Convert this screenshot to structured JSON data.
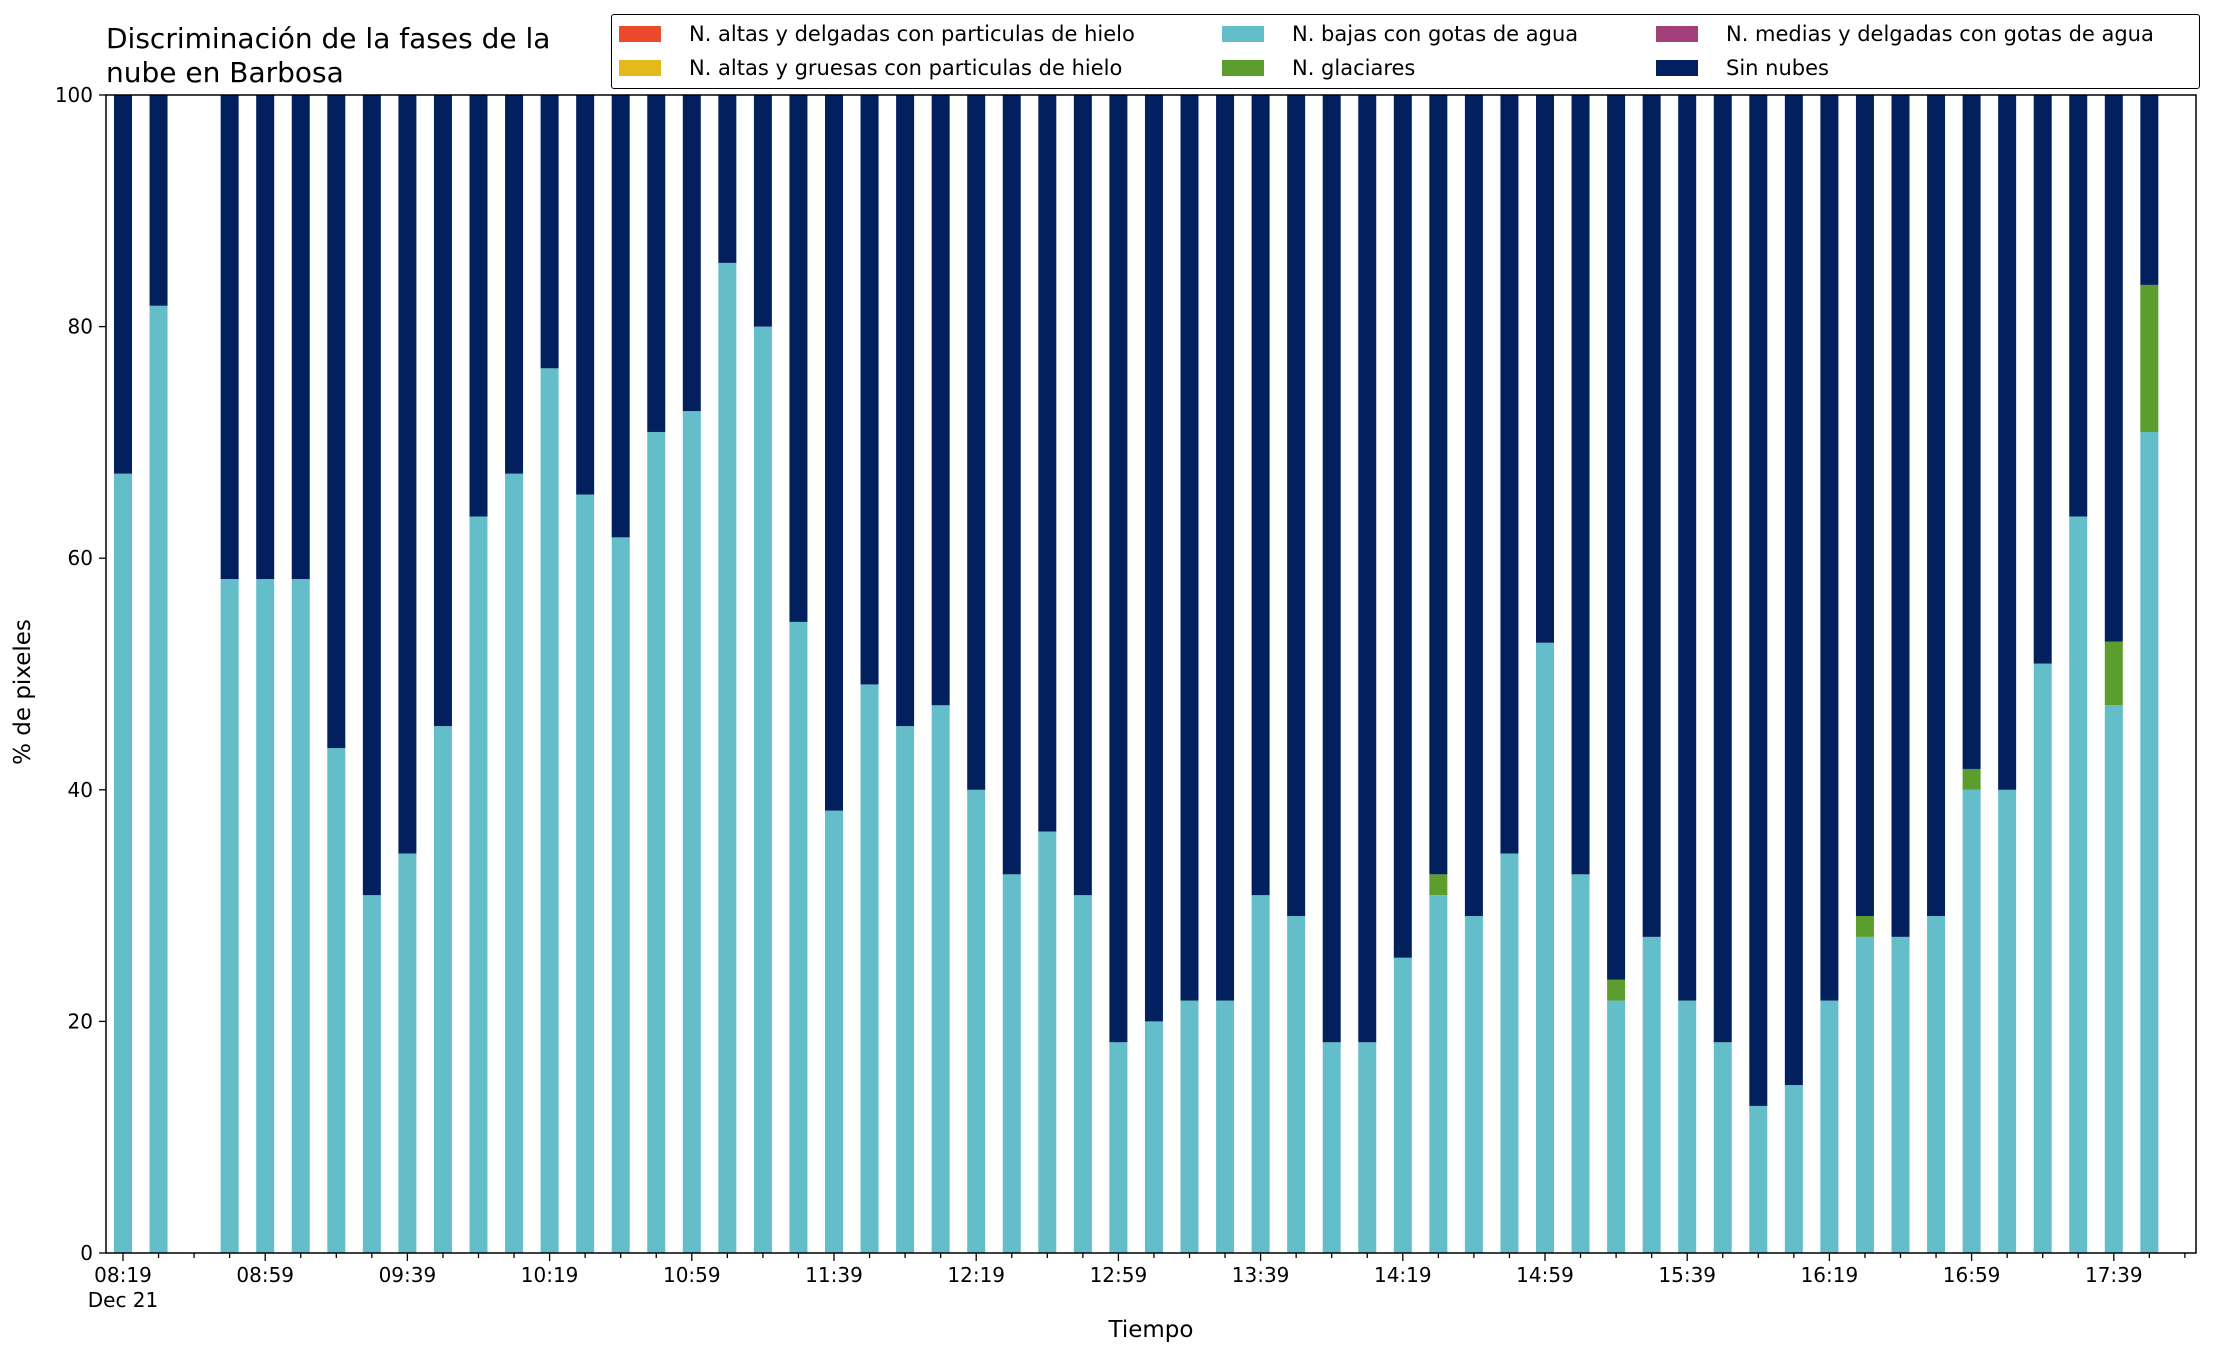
{
  "chart_data": {
    "type": "bar",
    "stacked": true,
    "title": "Discriminación de la fases de la\nnube en Barbosa",
    "xlabel": "Tiempo",
    "ylabel": "% de pixeles",
    "ylim": [
      0,
      100
    ],
    "yticks": [
      0,
      20,
      40,
      60,
      80,
      100
    ],
    "grid": false,
    "legend_position": "top-right",
    "x_start": "08:19",
    "x_step_minutes": 10,
    "x_tick_labels": [
      "08:19",
      "08:59",
      "09:39",
      "10:19",
      "10:59",
      "11:39",
      "12:19",
      "12:59",
      "13:39",
      "14:19",
      "14:59",
      "15:39",
      "16:19",
      "16:59",
      "17:39"
    ],
    "x_first_label_sublabel": "Dec 21",
    "categories": [
      "08:19",
      "08:29",
      "08:39",
      "08:49",
      "08:59",
      "09:09",
      "09:19",
      "09:29",
      "09:39",
      "09:49",
      "09:59",
      "10:09",
      "10:19",
      "10:29",
      "10:39",
      "10:49",
      "10:59",
      "11:09",
      "11:19",
      "11:29",
      "11:39",
      "11:49",
      "11:59",
      "12:09",
      "12:19",
      "12:29",
      "12:39",
      "12:49",
      "12:59",
      "13:09",
      "13:19",
      "13:29",
      "13:39",
      "13:49",
      "13:59",
      "14:09",
      "14:19",
      "14:29",
      "14:39",
      "14:49",
      "14:59",
      "15:09",
      "15:19",
      "15:29",
      "15:39",
      "15:49",
      "15:59",
      "16:09",
      "16:19",
      "16:29",
      "16:39",
      "16:49",
      "16:59",
      "17:09",
      "17:19",
      "17:29",
      "17:39",
      "17:49"
    ],
    "series": [
      {
        "name": "N. altas y delgadas con particulas de hielo",
        "color": "#ea4a2b",
        "values": [
          0,
          0,
          null,
          0,
          0,
          0,
          0,
          0,
          0,
          0,
          0,
          0,
          0,
          0,
          0,
          0,
          0,
          0,
          0,
          0,
          0,
          0,
          0,
          0,
          0,
          0,
          0,
          0,
          0,
          0,
          0,
          0,
          0,
          0,
          0,
          0,
          0,
          0,
          0,
          0,
          0,
          0,
          0,
          0,
          0,
          0,
          0,
          0,
          0,
          0,
          0,
          0,
          0,
          0,
          0,
          0,
          0,
          0
        ]
      },
      {
        "name": "N. altas y gruesas con particulas de hielo",
        "color": "#e5b81c",
        "values": [
          0,
          0,
          null,
          0,
          0,
          0,
          0,
          0,
          0,
          0,
          0,
          0,
          0,
          0,
          0,
          0,
          0,
          0,
          0,
          0,
          0,
          0,
          0,
          0,
          0,
          0,
          0,
          0,
          0,
          0,
          0,
          0,
          0,
          0,
          0,
          0,
          0,
          0,
          0,
          0,
          0,
          0,
          0,
          0,
          0,
          0,
          0,
          0,
          0,
          0,
          0,
          0,
          0,
          0,
          0,
          0,
          0,
          0
        ]
      },
      {
        "name": "N. bajas con gotas de agua",
        "color": "#64bec9",
        "values": [
          67.3,
          81.8,
          null,
          58.2,
          58.2,
          58.2,
          43.6,
          30.9,
          34.5,
          45.5,
          63.6,
          67.3,
          76.4,
          65.5,
          61.8,
          70.9,
          72.7,
          85.5,
          80.0,
          54.5,
          38.2,
          49.1,
          45.5,
          47.3,
          40.0,
          32.7,
          36.4,
          30.9,
          18.2,
          20.0,
          21.8,
          21.8,
          30.9,
          29.1,
          18.2,
          18.2,
          25.5,
          30.9,
          29.1,
          34.5,
          52.7,
          32.7,
          21.8,
          27.3,
          21.8,
          18.2,
          12.7,
          14.5,
          21.8,
          27.3,
          27.3,
          29.1,
          40.0,
          40.0,
          50.9,
          63.6,
          47.3,
          70.9
        ]
      },
      {
        "name": "N. glaciares",
        "color": "#5b9e2d",
        "values": [
          0,
          0,
          null,
          0,
          0,
          0,
          0,
          0,
          0,
          0,
          0,
          0,
          0,
          0,
          0,
          0,
          0,
          0,
          0,
          0,
          0,
          0,
          0,
          0,
          0,
          0,
          0,
          0,
          0,
          0,
          0,
          0,
          0,
          0,
          0,
          0,
          0,
          1.8,
          0,
          0,
          0,
          0,
          1.8,
          0,
          0,
          0,
          0,
          0,
          0,
          1.8,
          0,
          0,
          1.8,
          0,
          0,
          0,
          5.5,
          12.7
        ]
      },
      {
        "name": "N. medias y delgadas con gotas de agua",
        "color": "#a33f79",
        "values": [
          0,
          0,
          null,
          0,
          0,
          0,
          0,
          0,
          0,
          0,
          0,
          0,
          0,
          0,
          0,
          0,
          0,
          0,
          0,
          0,
          0,
          0,
          0,
          0,
          0,
          0,
          0,
          0,
          0,
          0,
          0,
          0,
          0,
          0,
          0,
          0,
          0,
          0,
          0,
          0,
          0,
          0,
          0,
          0,
          0,
          0,
          0,
          0,
          0,
          0,
          0,
          0,
          0,
          0,
          0,
          0,
          0,
          0
        ]
      },
      {
        "name": "Sin nubes",
        "color": "#03205e",
        "values": [
          32.7,
          18.2,
          null,
          41.8,
          41.8,
          41.8,
          56.4,
          69.1,
          65.5,
          54.5,
          36.4,
          32.7,
          23.6,
          34.5,
          38.2,
          29.1,
          27.3,
          14.5,
          20.0,
          45.5,
          61.8,
          50.9,
          54.5,
          52.7,
          60.0,
          67.3,
          63.6,
          69.1,
          81.8,
          80.0,
          78.2,
          78.2,
          69.1,
          70.9,
          81.8,
          81.8,
          74.5,
          67.3,
          70.9,
          65.5,
          47.3,
          67.3,
          76.4,
          72.7,
          78.2,
          81.8,
          87.3,
          85.5,
          78.2,
          70.9,
          72.7,
          70.9,
          58.2,
          60.0,
          49.1,
          36.4,
          47.2,
          16.4
        ]
      }
    ],
    "legend": [
      {
        "label": "N. altas y delgadas con particulas de hielo",
        "color": "#ea4a2b"
      },
      {
        "label": "N. altas y gruesas con particulas de hielo",
        "color": "#e5b81c"
      },
      {
        "label": "N. bajas con gotas de agua",
        "color": "#64bec9"
      },
      {
        "label": "N. glaciares",
        "color": "#5b9e2d"
      },
      {
        "label": "N. medias y delgadas con gotas de agua",
        "color": "#a33f79"
      },
      {
        "label": "Sin nubes",
        "color": "#03205e"
      }
    ]
  }
}
